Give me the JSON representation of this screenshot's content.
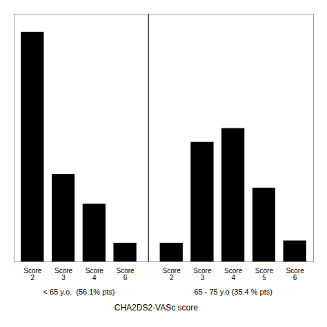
{
  "chart_data": {
    "type": "bar",
    "xlabel": "CHA2DS2-VASc score",
    "groups": [
      {
        "label": "< 65 y.o.  (56.1% pts)",
        "categories": [
          "Score\n2",
          "Score\n3",
          "Score\n4",
          "Score\n6"
        ],
        "values": [
          100,
          38,
          25,
          8
        ]
      },
      {
        "label": "65 - 75 y.o (35.4 % pts)",
        "categories": [
          "Score\n2",
          "Score\n3",
          "Score\n4",
          "Score\n5",
          "Score\n6"
        ],
        "values": [
          8,
          52,
          58,
          32,
          9
        ]
      }
    ],
    "color": "#000000",
    "ylim": [
      0,
      108
    ],
    "yticks": [],
    "grid": false,
    "tick_labels": "x"
  }
}
